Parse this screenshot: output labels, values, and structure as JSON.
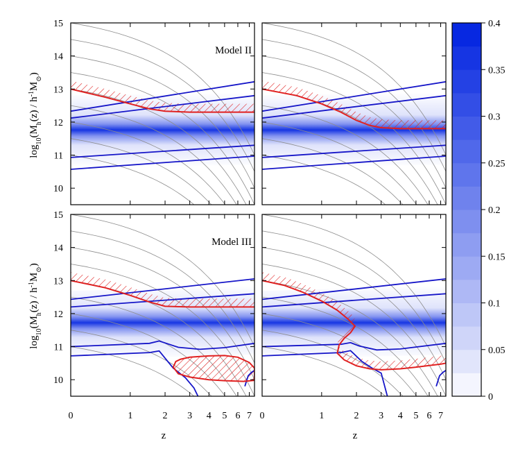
{
  "chart_data": {
    "type": "heatmap",
    "layout": "2x2 panels with shared axes and a colorbar",
    "xlabel": "z",
    "ylabel": "log10(Mh(z) / h-1 M⊙)",
    "ylabel_parts": {
      "base": "log",
      "base_sub": "10",
      "mid": "(M",
      "mid_sub": "h",
      "after": "(z) / h",
      "exp": "-1",
      "unit": "M",
      "unit_sub": "⊙",
      "close": ")"
    },
    "x_axis": {
      "scale": "log(1+z)",
      "ticks": [
        0,
        1,
        2,
        3,
        4,
        5,
        6,
        7
      ],
      "tick_labels": [
        "0",
        "1",
        "2",
        "3",
        "4",
        "5",
        "6",
        "7"
      ],
      "range": [
        0,
        7.5
      ]
    },
    "y_axis": {
      "range": [
        9.5,
        15
      ],
      "ticks": [
        10,
        11,
        12,
        13,
        14,
        15
      ],
      "tick_labels": [
        "10",
        "11",
        "12",
        "13",
        "14",
        "15"
      ]
    },
    "colorbar": {
      "range": [
        0,
        0.4
      ],
      "levels": [
        0,
        0.025,
        0.05,
        0.075,
        0.1,
        0.125,
        0.15,
        0.175,
        0.2,
        0.225,
        0.25,
        0.275,
        0.3,
        0.325,
        0.35,
        0.375,
        0.4
      ],
      "ticks": [
        0,
        0.05,
        0.1,
        0.15,
        0.2,
        0.25,
        0.3,
        0.35,
        0.4
      ],
      "tick_labels": [
        "0",
        "0.05",
        "0.1",
        "0.15",
        "0.2",
        "0.25",
        "0.3",
        "0.35",
        "0.4"
      ],
      "color_low": "#ffffff",
      "color_high": "#0022e0"
    },
    "colors": {
      "heat_band": "#1c5ee0",
      "blue_curves": "#1515c8",
      "red_contours": "#e02020",
      "growth_tracks": "#8c8c8c"
    },
    "growth_tracks_logM_at_z0": [
      15.0,
      14.5,
      14.0,
      13.5,
      13.0,
      12.5,
      12.0,
      11.5,
      11.0
    ],
    "panels": [
      {
        "id": "top-left",
        "label": "Model II",
        "heat_ridge": [
          [
            0,
            11.72
          ],
          [
            7.5,
            11.8
          ]
        ],
        "heat_width": 0.42,
        "blue_lines": [
          [
            [
              0,
              12.33
            ],
            [
              7.5,
              13.22
            ]
          ],
          [
            [
              0,
              12.12
            ],
            [
              7.5,
              12.8
            ]
          ],
          [
            [
              0,
              10.93
            ],
            [
              7.5,
              11.3
            ]
          ],
          [
            [
              0,
              10.57
            ],
            [
              7.5,
              10.97
            ]
          ]
        ],
        "red_curve": [
          [
            0,
            13.0
          ],
          [
            0.5,
            12.75
          ],
          [
            1,
            12.55
          ],
          [
            1.5,
            12.4
          ],
          [
            2,
            12.33
          ],
          [
            3,
            12.3
          ],
          [
            5,
            12.3
          ],
          [
            7.5,
            12.3
          ]
        ],
        "hatch": "above-red-curve"
      },
      {
        "id": "top-right",
        "label": "",
        "heat_ridge": [
          [
            0,
            11.72
          ],
          [
            7.5,
            11.8
          ]
        ],
        "heat_width": 0.42,
        "blue_lines": [
          [
            [
              0,
              12.33
            ],
            [
              7.5,
              13.22
            ]
          ],
          [
            [
              0,
              12.12
            ],
            [
              7.5,
              12.8
            ]
          ],
          [
            [
              0,
              10.93
            ],
            [
              7.5,
              11.3
            ]
          ],
          [
            [
              0,
              10.57
            ],
            [
              7.5,
              10.97
            ]
          ]
        ],
        "red_curve": [
          [
            0,
            13.0
          ],
          [
            0.5,
            12.8
          ],
          [
            1,
            12.55
          ],
          [
            1.5,
            12.3
          ],
          [
            2,
            12.05
          ],
          [
            2.5,
            11.9
          ],
          [
            3,
            11.83
          ],
          [
            4,
            11.8
          ],
          [
            7.5,
            11.8
          ]
        ],
        "hatch": "above-red-curve"
      },
      {
        "id": "bottom-left",
        "label": "Model III",
        "heat_ridge": [
          [
            0,
            11.65
          ],
          [
            7.5,
            11.8
          ]
        ],
        "heat_width": 0.4,
        "blue_lines": [
          [
            [
              0,
              12.43
            ],
            [
              7.5,
              13.05
            ]
          ],
          [
            [
              0,
              12.2
            ],
            [
              7.5,
              12.6
            ]
          ],
          [
            [
              0,
              11.0
            ],
            [
              1.5,
              11.1
            ],
            [
              1.8,
              11.17
            ],
            [
              2.5,
              10.98
            ],
            [
              3.5,
              10.92
            ],
            [
              5,
              10.97
            ],
            [
              7.5,
              11.1
            ]
          ],
          [
            [
              0,
              10.72
            ],
            [
              1.5,
              10.82
            ],
            [
              1.8,
              10.87
            ],
            [
              2.3,
              10.35
            ],
            [
              2.8,
              10.06
            ],
            [
              3.2,
              9.75
            ],
            [
              3.4,
              9.5
            ]
          ],
          [
            [
              6.6,
              9.8
            ],
            [
              6.9,
              10.12
            ],
            [
              7.2,
              10.22
            ],
            [
              7.5,
              10.28
            ]
          ]
        ],
        "red_curve": [
          [
            0,
            13.0
          ],
          [
            0.5,
            12.78
          ],
          [
            1,
            12.55
          ],
          [
            1.5,
            12.35
          ],
          [
            2,
            12.22
          ],
          [
            3,
            12.2
          ],
          [
            5,
            12.2
          ],
          [
            7.5,
            12.2
          ]
        ],
        "red_closed": [
          [
            2.6,
            10.62
          ],
          [
            3,
            10.68
          ],
          [
            4,
            10.72
          ],
          [
            5,
            10.73
          ],
          [
            6,
            10.68
          ],
          [
            7,
            10.52
          ],
          [
            7.5,
            10.35
          ],
          [
            7.5,
            9.98
          ],
          [
            6.5,
            9.95
          ],
          [
            5,
            9.97
          ],
          [
            4,
            10.0
          ],
          [
            3,
            10.08
          ],
          [
            2.5,
            10.18
          ],
          [
            2.3,
            10.38
          ],
          [
            2.4,
            10.55
          ],
          [
            2.6,
            10.62
          ]
        ],
        "hatch": "above-red-curve"
      },
      {
        "id": "bottom-right",
        "label": "",
        "heat_ridge": [
          [
            0,
            11.65
          ],
          [
            7.5,
            11.8
          ]
        ],
        "heat_width": 0.4,
        "blue_lines": [
          [
            [
              0,
              12.43
            ],
            [
              7.5,
              13.05
            ]
          ],
          [
            [
              0,
              12.2
            ],
            [
              7.5,
              12.6
            ]
          ],
          [
            [
              0,
              11.0
            ],
            [
              1.5,
              11.07
            ],
            [
              1.8,
              11.12
            ],
            [
              2.1,
              11.02
            ],
            [
              2.8,
              10.9
            ],
            [
              4,
              10.93
            ],
            [
              7.5,
              11.1
            ]
          ],
          [
            [
              0,
              10.72
            ],
            [
              1.5,
              10.82
            ],
            [
              1.8,
              10.88
            ],
            [
              2.2,
              10.55
            ],
            [
              2.6,
              10.35
            ],
            [
              3.0,
              10.2
            ],
            [
              3.3,
              9.5
            ]
          ],
          [
            [
              6.6,
              9.8
            ],
            [
              6.9,
              10.12
            ],
            [
              7.2,
              10.22
            ],
            [
              7.5,
              10.28
            ]
          ]
        ],
        "red_curve": [
          [
            0,
            13.0
          ],
          [
            0.3,
            12.85
          ],
          [
            0.6,
            12.65
          ],
          [
            1,
            12.38
          ],
          [
            1.4,
            12.1
          ],
          [
            1.7,
            11.85
          ],
          [
            1.95,
            11.62
          ],
          [
            1.8,
            11.42
          ],
          [
            1.6,
            11.25
          ],
          [
            1.45,
            11.05
          ],
          [
            1.4,
            10.8
          ],
          [
            1.6,
            10.6
          ],
          [
            2,
            10.42
          ],
          [
            2.5,
            10.33
          ],
          [
            3,
            10.3
          ],
          [
            4,
            10.33
          ],
          [
            5,
            10.38
          ],
          [
            6,
            10.43
          ],
          [
            7,
            10.47
          ],
          [
            7.5,
            10.5
          ]
        ],
        "hatch": "above-red-curve"
      }
    ]
  }
}
